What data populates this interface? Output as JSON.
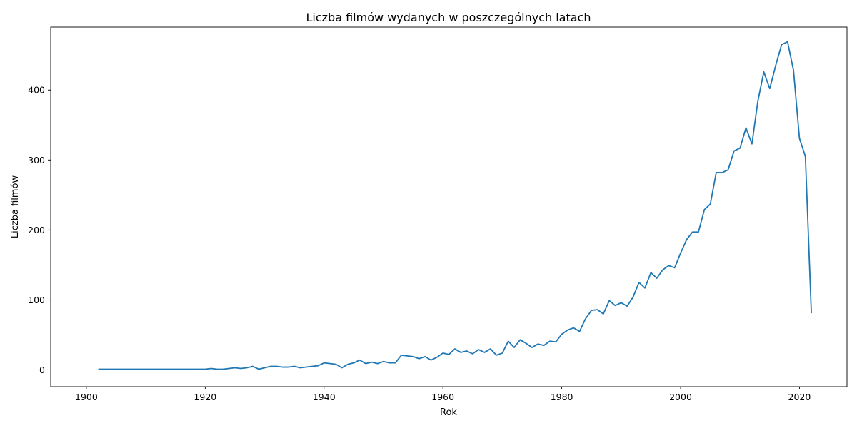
{
  "chart_data": {
    "type": "line",
    "title": "Liczba filmów wydanych w poszczególnych latach",
    "xlabel": "Rok",
    "ylabel": "Liczba filmów",
    "xlim": [
      1894,
      2028
    ],
    "ylim": [
      -24,
      490
    ],
    "xticks": [
      "1900",
      "1920",
      "1940",
      "1960",
      "1980",
      "2000",
      "2020"
    ],
    "yticks": [
      "0",
      "100",
      "200",
      "300",
      "400"
    ],
    "grid": false,
    "legend": "none",
    "color": "#1f77b4",
    "series": [
      {
        "x": [
          1902,
          1903,
          1904,
          1905,
          1906,
          1907,
          1908,
          1909,
          1910,
          1911,
          1912,
          1913,
          1914,
          1915,
          1916,
          1917,
          1918,
          1919,
          1920,
          1921,
          1922,
          1923,
          1924,
          1925,
          1926,
          1927,
          1928,
          1929,
          1930,
          1931,
          1932,
          1933,
          1934,
          1935,
          1936,
          1937,
          1938,
          1939,
          1940,
          1941,
          1942,
          1943,
          1944,
          1945,
          1946,
          1947,
          1948,
          1949,
          1950,
          1951,
          1952,
          1953,
          1954,
          1955,
          1956,
          1957,
          1958,
          1959,
          1960,
          1961,
          1962,
          1963,
          1964,
          1965,
          1966,
          1967,
          1968,
          1969,
          1970,
          1971,
          1972,
          1973,
          1974,
          1975,
          1976,
          1977,
          1978,
          1979,
          1980,
          1981,
          1982,
          1983,
          1984,
          1985,
          1986,
          1987,
          1988,
          1989,
          1990,
          1991,
          1992,
          1993,
          1994,
          1995,
          1996,
          1997,
          1998,
          1999,
          2000,
          2001,
          2002,
          2003,
          2004,
          2005,
          2006,
          2007,
          2008,
          2009,
          2010,
          2011,
          2012,
          2013,
          2014,
          2015,
          2016,
          2017,
          2018,
          2019,
          2020,
          2021,
          2022
        ],
        "values": [
          1,
          1,
          1,
          1,
          1,
          1,
          1,
          1,
          1,
          1,
          1,
          1,
          1,
          1,
          1,
          1,
          1,
          1,
          1,
          2,
          1,
          1,
          2,
          3,
          2,
          3,
          5,
          1,
          3,
          5,
          5,
          4,
          4,
          5,
          3,
          4,
          5,
          6,
          10,
          9,
          8,
          3,
          8,
          10,
          14,
          9,
          11,
          9,
          12,
          10,
          10,
          21,
          20,
          19,
          16,
          19,
          14,
          18,
          24,
          22,
          30,
          25,
          27,
          23,
          29,
          25,
          30,
          21,
          24,
          41,
          32,
          43,
          38,
          32,
          37,
          35,
          41,
          40,
          51,
          57,
          60,
          55,
          73,
          85,
          86,
          80,
          99,
          92,
          96,
          91,
          104,
          125,
          117,
          139,
          131,
          143,
          149,
          146,
          167,
          186,
          197,
          197,
          229,
          237,
          282,
          282,
          286,
          313,
          317,
          346,
          323,
          384,
          426,
          402,
          435,
          465,
          469,
          428,
          331,
          305,
          81
        ]
      }
    ]
  }
}
